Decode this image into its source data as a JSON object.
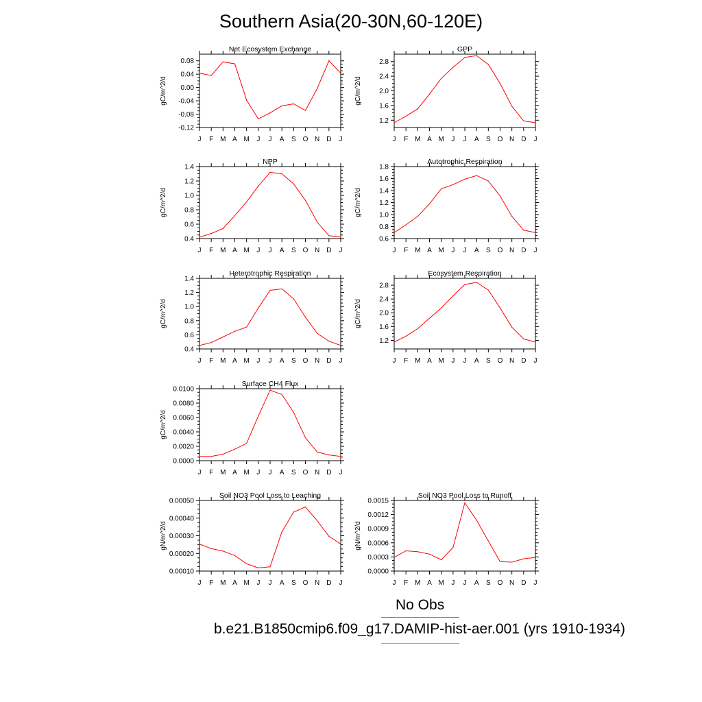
{
  "title": "Southern Asia(20-30N,60-120E)",
  "legend": {
    "obs_label": "No Obs",
    "model_label": "b.e21.B1850cmip6.f09_g17.DAMIP-hist-aer.001 (yrs 1910-1934)",
    "obs_color": "#6a6af0",
    "model_color": "#f08080"
  },
  "colors": {
    "series": "#ff0000",
    "axis": "#000000"
  },
  "chart_data": [
    {
      "type": "line",
      "title": "Net Ecosystem Exchange",
      "ylabel": "gC/m^2/d",
      "categories": [
        "J",
        "F",
        "M",
        "A",
        "M",
        "J",
        "J",
        "A",
        "S",
        "O",
        "N",
        "D",
        "J"
      ],
      "ylim": [
        -0.12,
        0.1
      ],
      "yticks": [
        -0.12,
        -0.08,
        -0.04,
        0.0,
        0.04,
        0.08
      ],
      "yticklabels": [
        "-0.12",
        "-0.08",
        "-0.04",
        "0.00",
        "0.04",
        "0.08"
      ],
      "series": [
        {
          "values": [
            0.043,
            0.036,
            0.077,
            0.071,
            -0.038,
            -0.094,
            -0.076,
            -0.055,
            -0.049,
            -0.069,
            -0.003,
            0.08,
            0.043
          ]
        }
      ]
    },
    {
      "type": "line",
      "title": "GPP",
      "ylabel": "gC/m^2/d",
      "categories": [
        "J",
        "F",
        "M",
        "A",
        "M",
        "J",
        "J",
        "A",
        "S",
        "O",
        "N",
        "D",
        "J"
      ],
      "ylim": [
        1.0,
        3.0
      ],
      "yticks": [
        1.2,
        1.6,
        2.0,
        2.4,
        2.8
      ],
      "yticklabels": [
        "1.2",
        "1.6",
        "2.0",
        "2.4",
        "2.8"
      ],
      "series": [
        {
          "values": [
            1.13,
            1.31,
            1.51,
            1.91,
            2.34,
            2.64,
            2.91,
            2.96,
            2.72,
            2.2,
            1.58,
            1.18,
            1.13
          ]
        }
      ]
    },
    {
      "type": "line",
      "title": "NPP",
      "ylabel": "gC/m^2/d",
      "categories": [
        "J",
        "F",
        "M",
        "A",
        "M",
        "J",
        "J",
        "A",
        "S",
        "O",
        "N",
        "D",
        "J"
      ],
      "ylim": [
        0.4,
        1.4
      ],
      "yticks": [
        0.4,
        0.6,
        0.8,
        1.0,
        1.2,
        1.4
      ],
      "yticklabels": [
        "0.4",
        "0.6",
        "0.8",
        "1.0",
        "1.2",
        "1.4"
      ],
      "series": [
        {
          "values": [
            0.42,
            0.47,
            0.54,
            0.72,
            0.91,
            1.13,
            1.32,
            1.3,
            1.16,
            0.93,
            0.63,
            0.44,
            0.42
          ]
        }
      ]
    },
    {
      "type": "line",
      "title": "Autotrophic Respiration",
      "ylabel": "gC/m^2/d",
      "categories": [
        "J",
        "F",
        "M",
        "A",
        "M",
        "J",
        "J",
        "A",
        "S",
        "O",
        "N",
        "D",
        "J"
      ],
      "ylim": [
        0.6,
        1.8
      ],
      "yticks": [
        0.6,
        0.8,
        1.0,
        1.2,
        1.4,
        1.6,
        1.8
      ],
      "yticklabels": [
        "0.6",
        "0.8",
        "1.0",
        "1.2",
        "1.4",
        "1.6",
        "1.8"
      ],
      "series": [
        {
          "values": [
            0.7,
            0.83,
            0.97,
            1.18,
            1.43,
            1.5,
            1.59,
            1.65,
            1.56,
            1.31,
            0.97,
            0.74,
            0.7
          ]
        }
      ]
    },
    {
      "type": "line",
      "title": "Heterotrophic Respiration",
      "ylabel": "gC/m^2/d",
      "categories": [
        "J",
        "F",
        "M",
        "A",
        "M",
        "J",
        "J",
        "A",
        "S",
        "O",
        "N",
        "D",
        "J"
      ],
      "ylim": [
        0.4,
        1.4
      ],
      "yticks": [
        0.4,
        0.6,
        0.8,
        1.0,
        1.2,
        1.4
      ],
      "yticklabels": [
        "0.4",
        "0.6",
        "0.8",
        "1.0",
        "1.2",
        "1.4"
      ],
      "series": [
        {
          "values": [
            0.45,
            0.49,
            0.57,
            0.65,
            0.71,
            0.98,
            1.23,
            1.25,
            1.11,
            0.85,
            0.62,
            0.51,
            0.45
          ]
        }
      ]
    },
    {
      "type": "line",
      "title": "Ecosystem Respiration",
      "ylabel": "gC/m^2/d",
      "categories": [
        "J",
        "F",
        "M",
        "A",
        "M",
        "J",
        "J",
        "A",
        "S",
        "O",
        "N",
        "D",
        "J"
      ],
      "ylim": [
        0.95,
        3.0
      ],
      "yticks": [
        1.2,
        1.6,
        2.0,
        2.4,
        2.8
      ],
      "yticklabels": [
        "1.2",
        "1.6",
        "2.0",
        "2.4",
        "2.8"
      ],
      "series": [
        {
          "values": [
            1.15,
            1.32,
            1.54,
            1.84,
            2.14,
            2.49,
            2.82,
            2.88,
            2.66,
            2.14,
            1.58,
            1.24,
            1.15
          ]
        }
      ]
    },
    {
      "type": "line",
      "title": "Surface CH4 Flux",
      "ylabel": "gC/m^2/d",
      "categories": [
        "J",
        "F",
        "M",
        "A",
        "M",
        "J",
        "J",
        "A",
        "S",
        "O",
        "N",
        "D",
        "J"
      ],
      "ylim": [
        0.0,
        0.01
      ],
      "yticks": [
        0.0,
        0.002,
        0.004,
        0.006,
        0.008,
        0.01
      ],
      "yticklabels": [
        "0.0000",
        "0.0020",
        "0.0040",
        "0.0060",
        "0.0080",
        "0.0100"
      ],
      "series": [
        {
          "values": [
            0.0006,
            0.0006,
            0.0009,
            0.0016,
            0.0024,
            0.0062,
            0.0098,
            0.0092,
            0.0067,
            0.0032,
            0.0012,
            0.0008,
            0.0006
          ]
        }
      ]
    },
    {
      "type": "line",
      "title": "Soil NO3 Pool Loss to Leaching",
      "ylabel": "gN/m^2/d",
      "categories": [
        "J",
        "F",
        "M",
        "A",
        "M",
        "J",
        "J",
        "A",
        "S",
        "O",
        "N",
        "D",
        "J"
      ],
      "ylim": [
        0.0001,
        0.0005
      ],
      "yticks": [
        0.0001,
        0.0002,
        0.0003,
        0.0004,
        0.0005
      ],
      "yticklabels": [
        "0.00010",
        "0.00020",
        "0.00030",
        "0.00040",
        "0.00050"
      ],
      "series": [
        {
          "values": [
            0.000253,
            0.000227,
            0.000213,
            0.000188,
            0.000141,
            0.000118,
            0.000124,
            0.000322,
            0.000434,
            0.000463,
            0.000385,
            0.000297,
            0.000253
          ]
        }
      ]
    },
    {
      "type": "line",
      "title": "Soil NO3 Pool Loss to Runoff",
      "ylabel": "gN/m^2/d",
      "categories": [
        "J",
        "F",
        "M",
        "A",
        "M",
        "J",
        "J",
        "A",
        "S",
        "O",
        "N",
        "D",
        "J"
      ],
      "ylim": [
        0.0,
        0.0015
      ],
      "yticks": [
        0.0,
        0.0003,
        0.0006,
        0.0009,
        0.0012,
        0.0015
      ],
      "yticklabels": [
        "0.0000",
        "0.0003",
        "0.0006",
        "0.0009",
        "0.0012",
        "0.0015"
      ],
      "series": [
        {
          "values": [
            0.00029,
            0.00043,
            0.00041,
            0.00036,
            0.00024,
            0.0005,
            0.00145,
            0.00108,
            0.00064,
            0.0002,
            0.00019,
            0.00026,
            0.00029
          ]
        }
      ]
    }
  ]
}
